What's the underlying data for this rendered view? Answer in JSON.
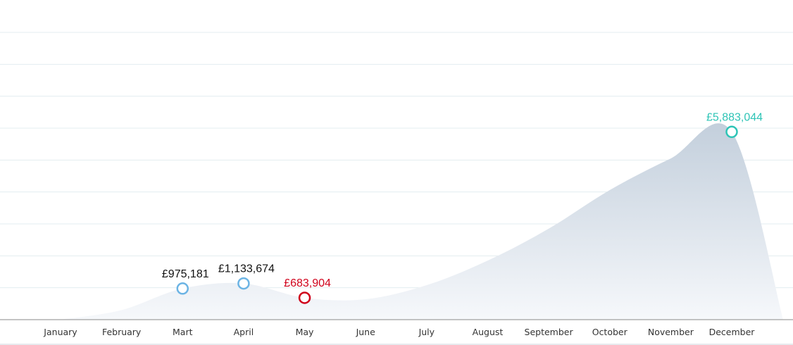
{
  "chart_data": {
    "type": "area",
    "categories": [
      "January",
      "February",
      "Mart",
      "April",
      "May",
      "June",
      "July",
      "August",
      "September",
      "October",
      "November",
      "December"
    ],
    "values": [
      0,
      300000,
      975181,
      1133674,
      683904,
      640000,
      1080000,
      1850000,
      2850000,
      4060000,
      5050000,
      5883044
    ],
    "value_labels": [
      null,
      null,
      "£975,181",
      "£1,133,674",
      "£683,904",
      null,
      null,
      null,
      null,
      null,
      null,
      "£5,883,044"
    ],
    "point_colors": [
      null,
      null,
      "#6cb4e4",
      "#6cb4e4",
      "#d0021b",
      null,
      null,
      null,
      null,
      null,
      null,
      "#2ec4b6"
    ],
    "label_colors": [
      null,
      null,
      "#111111",
      "#111111",
      "#d0021b",
      null,
      null,
      null,
      null,
      null,
      null,
      "#2ec4b6"
    ],
    "color": "#c9d4e0",
    "ylim": [
      0,
      9000000
    ],
    "yticks": [
      0,
      1000000,
      2000000,
      3000000,
      4000000,
      5000000,
      6000000,
      7000000,
      8000000,
      9000000
    ],
    "grid": true
  }
}
